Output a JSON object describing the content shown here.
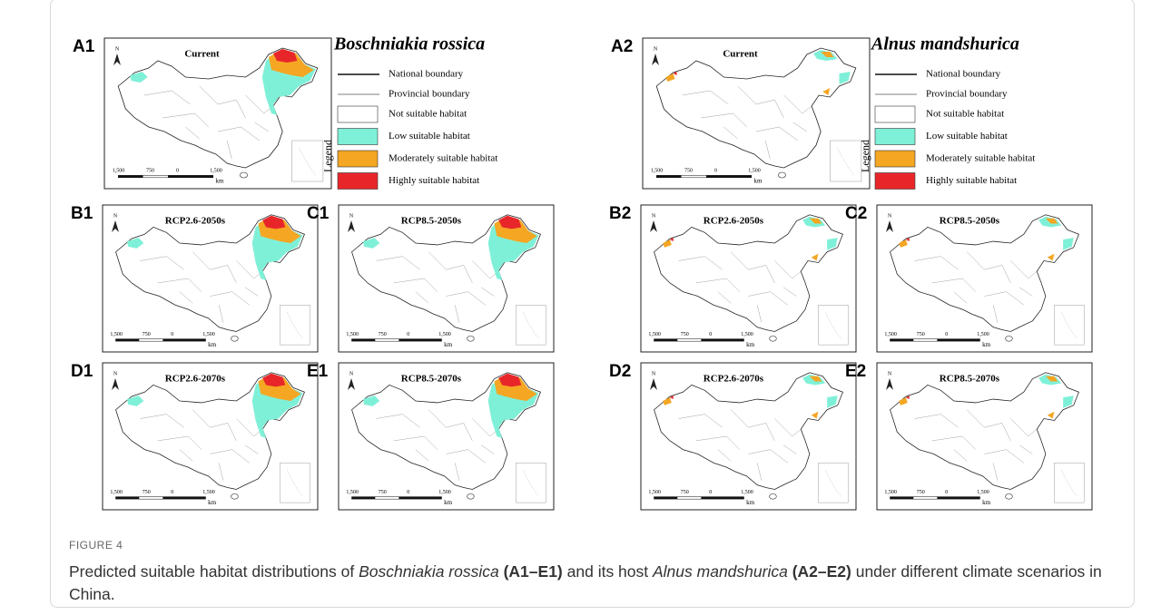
{
  "figure": {
    "panels": [
      {
        "label": "A1",
        "scenario": "Current"
      },
      {
        "label": "A2",
        "scenario": "Current"
      },
      {
        "label": "B1",
        "scenario": "RCP2.6-2050s"
      },
      {
        "label": "C1",
        "scenario": "RCP8.5-2050s"
      },
      {
        "label": "B2",
        "scenario": "RCP2.6-2050s"
      },
      {
        "label": "C2",
        "scenario": "RCP8.5-2050s"
      },
      {
        "label": "D1",
        "scenario": "RCP2.6-2070s"
      },
      {
        "label": "E1",
        "scenario": "RCP8.5-2070s"
      },
      {
        "label": "D2",
        "scenario": "RCP2.6-2070s"
      },
      {
        "label": "E2",
        "scenario": "RCP8.5-2070s"
      }
    ],
    "north": "N",
    "scale_labels": [
      "1,500",
      "750",
      "0",
      "1,500",
      "km"
    ],
    "species": [
      "Boschniakia rossica",
      "Alnus mandshurica"
    ],
    "legend": {
      "title": "Legend",
      "items": [
        "National boundary",
        "Provincial boundary",
        "Not suitable habitat",
        "Low suitable habitat",
        "Moderately suitable habitat",
        "Highly suitable habitat"
      ]
    },
    "caption": {
      "label": "FIGURE 4",
      "parts": [
        "Predicted suitable habitat distributions of ",
        "Boschniakia rossica",
        " (A1–E1)",
        " and its host ",
        "Alnus mandshurica",
        " (A2–E2)",
        " under different climate scenarios in China."
      ]
    }
  }
}
